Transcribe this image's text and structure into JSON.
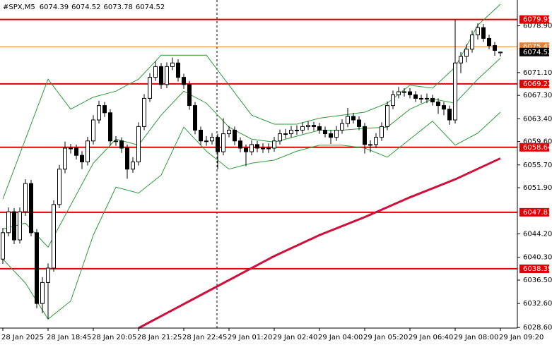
{
  "chart_data": {
    "type": "candlestick",
    "title": "#SPX,M5",
    "candles": [
      [
        6040.0,
        6045.2,
        6039.2,
        6044.4
      ],
      [
        6044.4,
        6048.6,
        6043.8,
        6047.9
      ],
      [
        6047.9,
        6048.5,
        6042.5,
        6043.2
      ],
      [
        6043.2,
        6048.6,
        6042.6,
        6047.9
      ],
      [
        6047.9,
        6053.3,
        6047.2,
        6052.6
      ],
      [
        6052.6,
        6053.2,
        6043.8,
        6044.4
      ],
      [
        6044.4,
        6045.0,
        6031.8,
        6032.6
      ],
      [
        6032.6,
        6037.0,
        6031.0,
        6036.1
      ],
      [
        6036.1,
        6039.3,
        6030.0,
        6038.5
      ],
      [
        6038.5,
        6049.8,
        6037.9,
        6049.1
      ],
      [
        6049.1,
        6055.7,
        6048.5,
        6055.0
      ],
      [
        6055.0,
        6059.6,
        6054.3,
        6058.5
      ],
      [
        6058.5,
        6059.2,
        6057.6,
        6058.5
      ],
      [
        6058.5,
        6059.1,
        6056.6,
        6057.3
      ],
      [
        6057.3,
        6058.0,
        6055.0,
        6056.2
      ],
      [
        6056.2,
        6060.4,
        6055.6,
        6059.7
      ],
      [
        6059.7,
        6064.0,
        6059.1,
        6063.2
      ],
      [
        6063.2,
        6066.4,
        6062.6,
        6065.6
      ],
      [
        6065.6,
        6066.2,
        6063.7,
        6064.4
      ],
      [
        6064.4,
        6065.0,
        6058.9,
        6059.7
      ],
      [
        6059.7,
        6060.5,
        6058.9,
        6059.7
      ],
      [
        6059.7,
        6060.3,
        6057.7,
        6058.5
      ],
      [
        6058.5,
        6059.1,
        6053.4,
        6055.0
      ],
      [
        6055.0,
        6057.0,
        6054.4,
        6056.2
      ],
      [
        6056.2,
        6062.8,
        6055.6,
        6062.1
      ],
      [
        6062.1,
        6067.5,
        6061.5,
        6066.8
      ],
      [
        6066.8,
        6071.0,
        6066.2,
        6070.3
      ],
      [
        6070.3,
        6073.0,
        6069.7,
        6072.1
      ],
      [
        6072.1,
        6072.7,
        6068.4,
        6069.1
      ],
      [
        6069.1,
        6072.8,
        6068.5,
        6072.1
      ],
      [
        6072.1,
        6073.6,
        6071.5,
        6072.7
      ],
      [
        6072.7,
        6073.3,
        6069.6,
        6070.3
      ],
      [
        6070.3,
        6070.9,
        6068.4,
        6069.1
      ],
      [
        6069.1,
        6069.7,
        6064.9,
        6065.6
      ],
      [
        6065.6,
        6066.2,
        6060.8,
        6061.5
      ],
      [
        6061.5,
        6062.1,
        6059.0,
        6059.7
      ],
      [
        6059.7,
        6060.5,
        6058.9,
        6059.7
      ],
      [
        6059.7,
        6061.0,
        6059.1,
        6060.3
      ],
      [
        6060.3,
        6060.9,
        6055.0,
        6057.9
      ],
      [
        6057.9,
        6063.5,
        6057.3,
        6060.9
      ],
      [
        6060.9,
        6062.2,
        6060.3,
        6061.5
      ],
      [
        6061.5,
        6062.1,
        6059.0,
        6059.7
      ],
      [
        6059.7,
        6060.3,
        6057.8,
        6058.5
      ],
      [
        6058.5,
        6059.1,
        6055.5,
        6057.9
      ],
      [
        6057.9,
        6059.8,
        6057.3,
        6059.1
      ],
      [
        6059.1,
        6059.7,
        6057.8,
        6058.5
      ],
      [
        6058.5,
        6059.3,
        6057.7,
        6058.5
      ],
      [
        6058.5,
        6059.3,
        6057.7,
        6058.5
      ],
      [
        6058.5,
        6060.4,
        6057.9,
        6059.7
      ],
      [
        6059.7,
        6061.6,
        6059.1,
        6060.9
      ],
      [
        6060.9,
        6061.7,
        6060.1,
        6060.9
      ],
      [
        6060.9,
        6062.2,
        6060.3,
        6061.5
      ],
      [
        6061.5,
        6062.3,
        6060.7,
        6061.5
      ],
      [
        6061.5,
        6062.8,
        6060.9,
        6062.1
      ],
      [
        6062.1,
        6063.0,
        6061.5,
        6062.3
      ],
      [
        6062.3,
        6062.9,
        6061.4,
        6062.1
      ],
      [
        6062.1,
        6062.7,
        6060.9,
        6061.5
      ],
      [
        6061.5,
        6062.1,
        6060.3,
        6060.9
      ],
      [
        6060.9,
        6061.5,
        6059.2,
        6060.3
      ],
      [
        6060.3,
        6062.2,
        6059.7,
        6061.5
      ],
      [
        6061.5,
        6063.3,
        6060.9,
        6062.6
      ],
      [
        6062.6,
        6065.2,
        6062.0,
        6063.8
      ],
      [
        6063.8,
        6064.4,
        6062.6,
        6063.2
      ],
      [
        6063.2,
        6063.8,
        6061.5,
        6062.1
      ],
      [
        6062.1,
        6062.7,
        6057.6,
        6059.1
      ],
      [
        6059.1,
        6059.8,
        6057.8,
        6059.1
      ],
      [
        6059.1,
        6061.0,
        6058.5,
        6060.3
      ],
      [
        6060.3,
        6062.8,
        6059.7,
        6062.1
      ],
      [
        6062.1,
        6066.3,
        6061.5,
        6065.6
      ],
      [
        6065.6,
        6068.1,
        6065.0,
        6067.4
      ],
      [
        6067.4,
        6068.7,
        6066.8,
        6067.9
      ],
      [
        6067.9,
        6068.5,
        6067.1,
        6067.9
      ],
      [
        6067.9,
        6068.5,
        6066.8,
        6067.4
      ],
      [
        6067.4,
        6068.0,
        6066.2,
        6066.8
      ],
      [
        6066.8,
        6067.4,
        6066.0,
        6066.8
      ],
      [
        6066.8,
        6067.6,
        6066.0,
        6066.8
      ],
      [
        6066.8,
        6067.4,
        6065.6,
        6066.2
      ],
      [
        6066.2,
        6066.8,
        6064.2,
        6065.6
      ],
      [
        6065.6,
        6066.2,
        6064.0,
        6065.0
      ],
      [
        6065.0,
        6065.6,
        6062.4,
        6063.2
      ],
      [
        6063.2,
        6079.95,
        6062.6,
        6072.7
      ],
      [
        6072.7,
        6074.5,
        6071.0,
        6073.8
      ],
      [
        6073.8,
        6075.8,
        6072.8,
        6075.0
      ],
      [
        6075.0,
        6078.1,
        6074.4,
        6077.4
      ],
      [
        6077.4,
        6079.3,
        6076.6,
        6078.6
      ],
      [
        6078.6,
        6079.2,
        6076.2,
        6076.8
      ],
      [
        6076.8,
        6077.4,
        6075.0,
        6075.6
      ],
      [
        6075.6,
        6076.2,
        6073.9,
        6074.8
      ],
      [
        6074.39,
        6074.52,
        6073.78,
        6074.52
      ]
    ],
    "series": [
      {
        "color": "#2e9b3a",
        "x": [
          0,
          4,
          8,
          12,
          16,
          20,
          24,
          28,
          32,
          36,
          40,
          44,
          48,
          52,
          56,
          60,
          64,
          68,
          72,
          76,
          80,
          84,
          88
        ],
        "values": [
          6050,
          6060,
          6070,
          6065,
          6067,
          6068,
          6070,
          6074,
          6074,
          6074,
          6069,
          6064,
          6062.5,
          6062.5,
          6063.5,
          6064,
          6064.5,
          6066,
          6069,
          6068.5,
          6072,
          6079,
          6082.5
        ]
      },
      {
        "color": "#2e9b3a",
        "x": [
          0,
          4,
          8,
          12,
          16,
          20,
          24,
          28,
          32,
          36,
          40,
          44,
          48,
          52,
          56,
          60,
          64,
          68,
          72,
          76,
          80,
          84,
          88
        ],
        "values": [
          6045,
          6046,
          6042,
          6049,
          6056,
          6060,
          6059,
          6064,
          6068,
          6066,
          6062,
          6060,
          6059.5,
          6060.5,
          6061.5,
          6061.5,
          6061.8,
          6062,
          6065,
          6066.7,
          6066,
          6070,
          6073.5
        ]
      },
      {
        "color": "#2e9b3a",
        "x": [
          0,
          4,
          8,
          12,
          16,
          20,
          24,
          28,
          32,
          36,
          40,
          44,
          48,
          52,
          56,
          60,
          64,
          68,
          72,
          76,
          80,
          84,
          88
        ],
        "values": [
          6040,
          6036,
          6030,
          6033,
          6044,
          6052,
          6051,
          6054,
          6062,
          6058,
          6055,
          6056,
          6056.5,
          6058,
          6059,
          6059,
          6058.5,
          6057,
          6060,
          6063,
          6059,
          6061,
          6064.5
        ]
      },
      {
        "color": "#d0103a",
        "x": [
          24,
          32,
          40,
          48,
          56,
          64,
          72,
          80,
          88
        ],
        "values": [
          6028.5,
          6032.5,
          6036.5,
          6040.5,
          6044,
          6047,
          6050.3,
          6053.3,
          6056.8
        ]
      }
    ],
    "levels": [
      {
        "value": 6079.95,
        "color": "#e00000"
      },
      {
        "value": 6075.42,
        "color": "#f07f2a"
      },
      {
        "value": 6069.22,
        "color": "#e00000"
      },
      {
        "value": 6058.64,
        "color": "#e00000"
      },
      {
        "value": 6047.81,
        "color": "#e00000"
      },
      {
        "value": 6038.39,
        "color": "#e00000"
      }
    ],
    "xlim": [
      -0.5,
      91
    ],
    "xticks": [
      {
        "value": 0,
        "label": "28 Jan 2025"
      },
      {
        "value": 8,
        "label": "28 Jan 18:45"
      },
      {
        "value": 16,
        "label": "28 Jan 20:05"
      },
      {
        "value": 24,
        "label": "28 Jan 21:25"
      },
      {
        "value": 32,
        "label": "28 Jan 22:45"
      },
      {
        "value": 40,
        "label": "29 Jan 01:20"
      },
      {
        "value": 48,
        "label": "29 Jan 02:40"
      },
      {
        "value": 56,
        "label": "29 Jan 04:00"
      },
      {
        "value": 64,
        "label": "29 Jan 05:20"
      },
      {
        "value": 72,
        "label": "29 Jan 06:40"
      },
      {
        "value": 80,
        "label": "29 Jan 08:00"
      },
      {
        "value": 88,
        "label": "29 Jan 09:20"
      }
    ],
    "ylim": [
      6028.5,
      6083.2
    ],
    "yticks": [
      {
        "value": 6078.9,
        "label": "6078.90"
      },
      {
        "value": 6071.1,
        "label": "6071.10"
      },
      {
        "value": 6067.3,
        "label": "6067.30"
      },
      {
        "value": 6063.4,
        "label": "6063.40"
      },
      {
        "value": 6059.6,
        "label": "6059.60"
      },
      {
        "value": 6055.7,
        "label": "6055.70"
      },
      {
        "value": 6051.9,
        "label": "6051.90"
      },
      {
        "value": 6044.2,
        "label": "6044.20"
      },
      {
        "value": 6040.3,
        "label": "6040.30"
      },
      {
        "value": 6036.5,
        "label": "6036.50"
      },
      {
        "value": 6032.6,
        "label": "6032.60"
      },
      {
        "value": 6028.6,
        "label": "6028.60"
      }
    ]
  }
}
